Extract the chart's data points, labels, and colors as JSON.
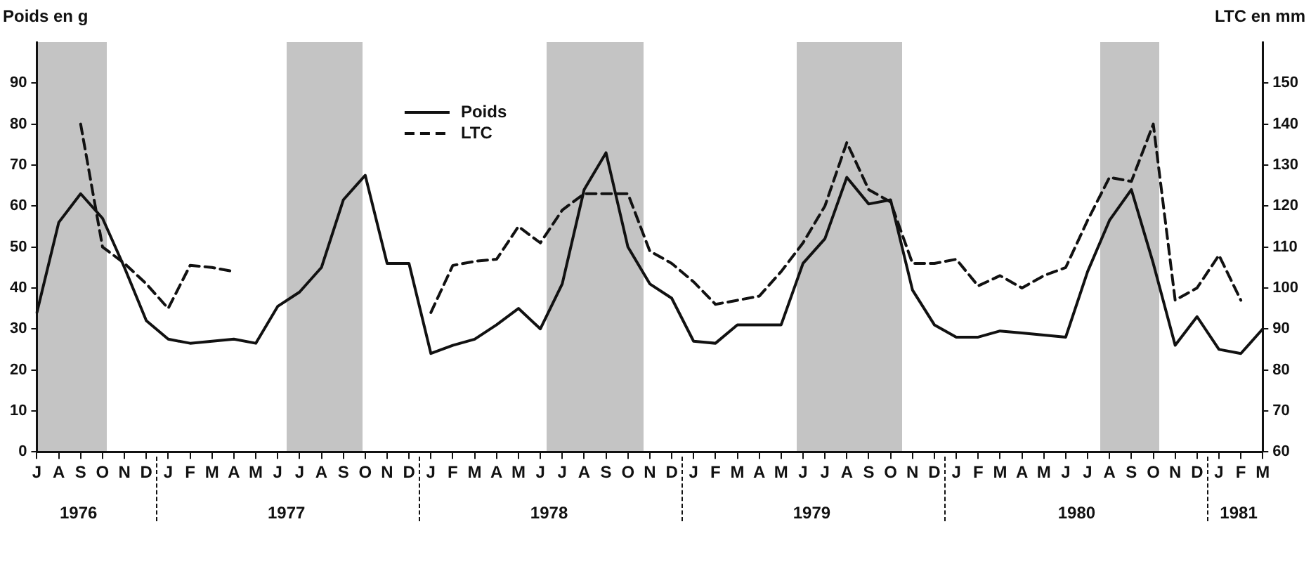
{
  "chart_data": {
    "type": "line",
    "ylabel": "Poids en g",
    "y2label": "LTC en mm",
    "categories": [
      "J",
      "A",
      "S",
      "O",
      "N",
      "D",
      "J",
      "F",
      "M",
      "A",
      "M",
      "J",
      "J",
      "A",
      "S",
      "O",
      "N",
      "D",
      "J",
      "F",
      "M",
      "A",
      "M",
      "J",
      "J",
      "A",
      "S",
      "O",
      "N",
      "D",
      "J",
      "F",
      "M",
      "A",
      "M",
      "J",
      "J",
      "A",
      "S",
      "O",
      "N",
      "D",
      "J",
      "F",
      "M",
      "A",
      "M",
      "J",
      "J",
      "A",
      "S",
      "O",
      "N",
      "D",
      "J",
      "F",
      "M"
    ],
    "series": [
      {
        "name": "Poids",
        "color": "#111111",
        "line_style": "solid",
        "values": [
          34,
          56,
          63,
          57,
          45,
          32,
          27.5,
          26.5,
          27,
          27.5,
          26.5,
          35.5,
          39,
          45,
          61.5,
          67.5,
          46,
          46,
          24,
          26,
          27.5,
          31,
          35,
          30,
          41,
          64,
          73,
          50,
          41,
          37.5,
          27,
          26.5,
          31,
          31,
          31,
          46,
          52,
          67,
          60.5,
          61.5,
          39.5,
          31,
          28,
          28,
          29.5,
          29,
          28.5,
          28,
          44,
          56.5,
          64,
          46,
          26,
          33,
          25,
          24,
          30
        ]
      },
      {
        "name": "LTC",
        "color": "#111111",
        "line_style": "dashed",
        "axis": "y2",
        "values": [
          null,
          null,
          140,
          110,
          106,
          101,
          95,
          105.5,
          105,
          104,
          null,
          null,
          null,
          null,
          null,
          null,
          null,
          null,
          94,
          105.5,
          106.5,
          107,
          115,
          111,
          119,
          123,
          123,
          123,
          109,
          106,
          101.5,
          96,
          97,
          98,
          104,
          111,
          120,
          135.5,
          124,
          121,
          106,
          106,
          107,
          100.5,
          103,
          100,
          103,
          105,
          116.5,
          127,
          126,
          140,
          97,
          100,
          108,
          97,
          null
        ]
      }
    ],
    "ylim": [
      0,
      100
    ],
    "yticks": [
      0,
      10,
      20,
      30,
      40,
      50,
      60,
      70,
      80,
      90
    ],
    "y2lim": [
      60,
      160
    ],
    "y2ticks": [
      60,
      70,
      80,
      90,
      100,
      110,
      120,
      130,
      140,
      150
    ],
    "annotations": [
      "1976",
      "1977",
      "1978",
      "1979",
      "1980",
      "1981"
    ],
    "legend": "top",
    "marker": "none",
    "grid": false
  }
}
